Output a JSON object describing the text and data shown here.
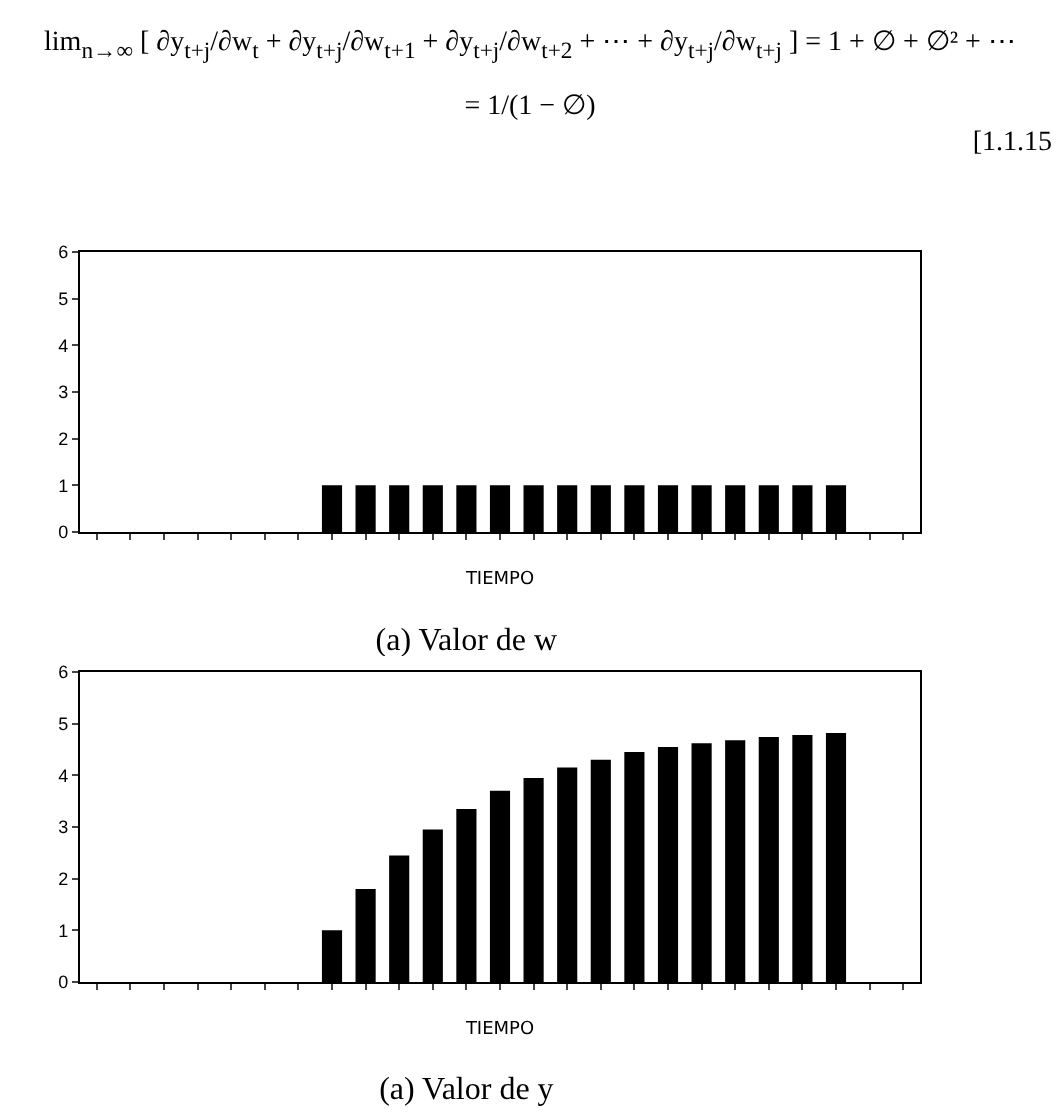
{
  "chart_data": [
    {
      "type": "bar",
      "title": "(a) Valor de w",
      "xlabel": "TIEMPO",
      "annotations": [
        "lim$_{n→∞}$ [ ∂y$_{t+j}$/∂w$_{t}$ + ∂y$_{t+j}$/∂w$_{t+1}$ + ∂y$_{t+j}$/∂w$_{t+2}$ + ⋯ + ∂y$_{t+j}$/∂w$_{t+j}$ ]   = 1 + ∅ + ∅² + ⋯",
        "= 1/(1 − ∅)",
        "[1.1.15"
      ],
      "categories": [
        null,
        null,
        null,
        null,
        null,
        null,
        null,
        null,
        null,
        null,
        null,
        null,
        null,
        null,
        null,
        null,
        null,
        null,
        null,
        null,
        null,
        null,
        null,
        null,
        null
      ],
      "values": [
        0,
        0,
        0,
        0,
        0,
        0,
        0,
        1,
        1,
        1,
        1,
        1,
        1,
        1,
        1,
        1,
        1,
        1,
        1,
        1,
        1,
        1,
        1,
        0,
        0
      ],
      "color": "#000000",
      "ylim": [
        0,
        6
      ],
      "yticks": [
        0,
        1,
        2,
        3,
        4,
        5,
        6
      ],
      "grid": false,
      "tick_labels": "y"
    },
    {
      "type": "bar",
      "title": "(a) Valor de y",
      "xlabel": "TIEMPO",
      "categories": [
        null,
        null,
        null,
        null,
        null,
        null,
        null,
        null,
        null,
        null,
        null,
        null,
        null,
        null,
        null,
        null,
        null,
        null,
        null,
        null,
        null,
        null,
        null,
        null,
        null
      ],
      "values": [
        0,
        0,
        0,
        0,
        0,
        0,
        0,
        1,
        1.8,
        2.45,
        2.95,
        3.35,
        3.7,
        3.95,
        4.15,
        4.3,
        4.45,
        4.55,
        4.62,
        4.68,
        4.74,
        4.78,
        4.82,
        0,
        0
      ],
      "color": "#000000",
      "ylim": [
        0,
        6
      ],
      "yticks": [
        0,
        1,
        2,
        3,
        4,
        5,
        6
      ],
      "grid": false,
      "tick_labels": "y"
    }
  ]
}
